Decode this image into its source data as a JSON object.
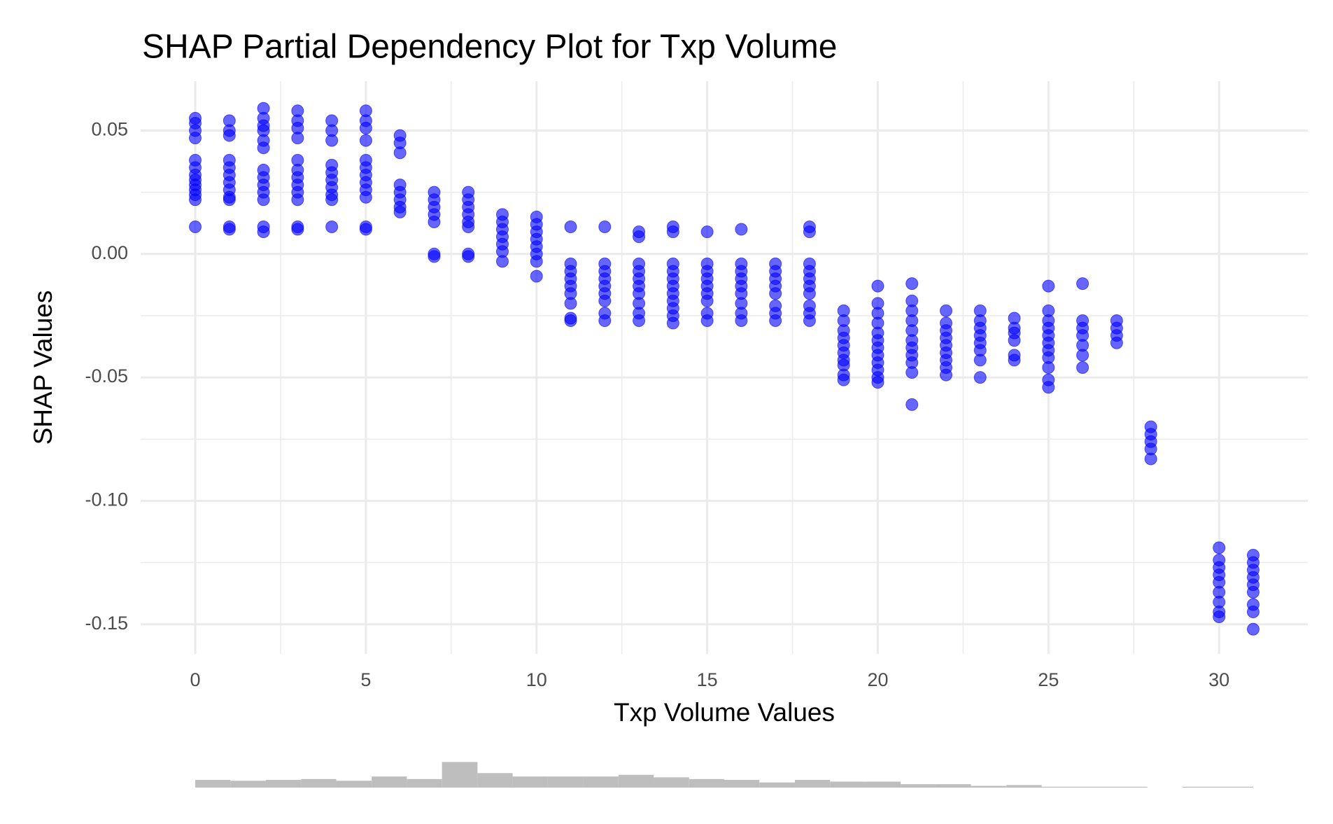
{
  "chart_data": [
    {
      "type": "scatter",
      "title": "SHAP Partial Dependency Plot for Txp Volume",
      "x_label": "Txp Volume Values",
      "y_label": "SHAP Values",
      "color": "#0000ff",
      "grid": true,
      "xlim": [
        -1.6,
        32.6
      ],
      "xticks": [
        0,
        5,
        10,
        15,
        20,
        25,
        30
      ],
      "ylim": [
        -0.162,
        0.07
      ],
      "yticks": [
        {
          "value": -0.15,
          "label": "-0.15"
        },
        {
          "value": -0.1,
          "label": "-0.10"
        },
        -0.05,
        {
          "value": 0,
          "label": "0.00"
        },
        0.05
      ],
      "x": [
        0,
        0,
        0,
        0,
        0,
        0,
        0,
        0,
        0,
        0,
        0,
        0,
        0,
        1,
        1,
        1,
        1,
        1,
        1,
        1,
        1,
        1,
        1,
        1,
        1,
        2,
        2,
        2,
        2,
        2,
        2,
        2,
        2,
        2,
        2,
        2,
        2,
        2,
        3,
        3,
        3,
        3,
        3,
        3,
        3,
        3,
        3,
        3,
        3,
        3,
        4,
        4,
        4,
        4,
        4,
        4,
        4,
        4,
        4,
        4,
        5,
        5,
        5,
        5,
        5,
        5,
        5,
        5,
        5,
        5,
        5,
        5,
        6,
        6,
        6,
        6,
        6,
        6,
        6,
        6,
        7,
        7,
        7,
        7,
        7,
        7,
        7,
        8,
        8,
        8,
        8,
        8,
        8,
        8,
        8,
        9,
        9,
        9,
        9,
        9,
        9,
        9,
        10,
        10,
        10,
        10,
        10,
        10,
        10,
        10,
        11,
        11,
        11,
        11,
        11,
        11,
        11,
        11,
        11,
        12,
        12,
        12,
        12,
        12,
        12,
        12,
        12,
        12,
        13,
        13,
        13,
        13,
        13,
        13,
        13,
        13,
        13,
        13,
        14,
        14,
        14,
        14,
        14,
        14,
        14,
        14,
        14,
        14,
        14,
        15,
        15,
        15,
        15,
        15,
        15,
        15,
        15,
        15,
        16,
        16,
        16,
        16,
        16,
        16,
        16,
        16,
        16,
        17,
        17,
        17,
        17,
        17,
        17,
        17,
        17,
        18,
        18,
        18,
        18,
        18,
        18,
        18,
        18,
        18,
        18,
        19,
        19,
        19,
        19,
        19,
        19,
        19,
        19,
        19,
        19,
        20,
        20,
        20,
        20,
        20,
        20,
        20,
        20,
        20,
        20,
        20,
        20,
        21,
        21,
        21,
        21,
        21,
        21,
        21,
        21,
        21,
        21,
        21,
        22,
        22,
        22,
        22,
        22,
        22,
        22,
        22,
        22,
        23,
        23,
        23,
        23,
        23,
        23,
        23,
        23,
        24,
        24,
        24,
        24,
        24,
        24,
        25,
        25,
        25,
        25,
        25,
        25,
        25,
        25,
        25,
        25,
        25,
        26,
        26,
        26,
        26,
        26,
        26,
        26,
        27,
        27,
        27,
        27,
        28,
        28,
        28,
        28,
        28,
        30,
        30,
        30,
        30,
        30,
        30,
        30,
        30,
        30,
        31,
        31,
        31,
        31,
        31,
        31,
        31,
        31,
        31
      ],
      "y": [
        0.055,
        0.053,
        0.05,
        0.047,
        0.038,
        0.035,
        0.032,
        0.03,
        0.028,
        0.026,
        0.024,
        0.022,
        0.011,
        0.054,
        0.05,
        0.048,
        0.038,
        0.035,
        0.032,
        0.029,
        0.026,
        0.023,
        0.022,
        0.011,
        0.01,
        0.059,
        0.055,
        0.052,
        0.05,
        0.046,
        0.043,
        0.034,
        0.031,
        0.028,
        0.025,
        0.022,
        0.011,
        0.009,
        0.058,
        0.054,
        0.051,
        0.047,
        0.038,
        0.034,
        0.031,
        0.028,
        0.025,
        0.022,
        0.011,
        0.01,
        0.054,
        0.05,
        0.046,
        0.036,
        0.033,
        0.03,
        0.027,
        0.024,
        0.022,
        0.011,
        0.058,
        0.054,
        0.051,
        0.046,
        0.038,
        0.035,
        0.032,
        0.029,
        0.026,
        0.023,
        0.011,
        0.01,
        0.048,
        0.045,
        0.041,
        0.028,
        0.025,
        0.022,
        0.019,
        0.017,
        0.025,
        0.022,
        0.019,
        0.016,
        0.013,
        0.0,
        -0.001,
        0.025,
        0.022,
        0.019,
        0.016,
        0.013,
        0.011,
        0.0,
        -0.001,
        0.016,
        0.013,
        0.01,
        0.007,
        0.004,
        0.001,
        -0.003,
        0.015,
        0.012,
        0.009,
        0.006,
        0.003,
        0.0,
        -0.003,
        -0.009,
        0.011,
        -0.004,
        -0.007,
        -0.01,
        -0.013,
        -0.016,
        -0.02,
        -0.026,
        -0.027,
        0.011,
        -0.004,
        -0.007,
        -0.01,
        -0.013,
        -0.016,
        -0.019,
        -0.024,
        -0.027,
        0.009,
        0.007,
        -0.004,
        -0.007,
        -0.01,
        -0.013,
        -0.016,
        -0.02,
        -0.024,
        -0.027,
        0.011,
        0.009,
        -0.004,
        -0.007,
        -0.01,
        -0.013,
        -0.016,
        -0.019,
        -0.022,
        -0.025,
        -0.028,
        0.009,
        -0.004,
        -0.007,
        -0.01,
        -0.013,
        -0.016,
        -0.019,
        -0.024,
        -0.027,
        0.01,
        -0.004,
        -0.007,
        -0.01,
        -0.013,
        -0.016,
        -0.02,
        -0.024,
        -0.027,
        -0.004,
        -0.007,
        -0.01,
        -0.013,
        -0.016,
        -0.021,
        -0.024,
        -0.027,
        0.011,
        0.009,
        -0.004,
        -0.007,
        -0.01,
        -0.013,
        -0.016,
        -0.021,
        -0.024,
        -0.027,
        -0.023,
        -0.027,
        -0.031,
        -0.034,
        -0.037,
        -0.04,
        -0.043,
        -0.045,
        -0.049,
        -0.051,
        -0.013,
        -0.02,
        -0.024,
        -0.028,
        -0.032,
        -0.035,
        -0.038,
        -0.041,
        -0.044,
        -0.047,
        -0.05,
        -0.052,
        -0.012,
        -0.019,
        -0.023,
        -0.027,
        -0.031,
        -0.035,
        -0.038,
        -0.041,
        -0.044,
        -0.048,
        -0.061,
        -0.023,
        -0.028,
        -0.031,
        -0.034,
        -0.037,
        -0.04,
        -0.043,
        -0.046,
        -0.049,
        -0.023,
        -0.027,
        -0.03,
        -0.033,
        -0.036,
        -0.039,
        -0.043,
        -0.05,
        -0.026,
        -0.03,
        -0.032,
        -0.035,
        -0.041,
        -0.043,
        -0.013,
        -0.023,
        -0.027,
        -0.03,
        -0.033,
        -0.036,
        -0.039,
        -0.042,
        -0.046,
        -0.051,
        -0.054,
        -0.012,
        -0.027,
        -0.03,
        -0.033,
        -0.037,
        -0.041,
        -0.046,
        -0.027,
        -0.03,
        -0.033,
        -0.036,
        -0.07,
        -0.073,
        -0.076,
        -0.079,
        -0.083,
        -0.119,
        -0.124,
        -0.127,
        -0.13,
        -0.133,
        -0.137,
        -0.141,
        -0.145,
        -0.147,
        -0.122,
        -0.125,
        -0.128,
        -0.131,
        -0.134,
        -0.137,
        -0.142,
        -0.145,
        -0.152
      ]
    },
    {
      "type": "histogram",
      "color": "#bebebe",
      "bins": [
        0,
        1.03,
        2.07,
        3.1,
        4.13,
        5.17,
        6.2,
        7.23,
        8.27,
        9.3,
        10.33,
        11.37,
        12.4,
        13.43,
        14.47,
        15.5,
        16.53,
        17.57,
        18.6,
        19.63,
        20.67,
        21.7,
        22.73,
        23.77,
        24.8,
        25.83,
        26.87,
        27.9,
        28.93,
        29.97,
        31
      ],
      "counts": [
        9,
        8,
        9,
        10,
        8,
        13,
        10,
        30,
        17,
        13,
        13,
        13,
        15,
        12,
        10,
        9,
        6,
        9,
        7,
        7,
        4,
        4,
        2,
        3,
        1,
        1,
        1,
        0,
        1,
        1
      ]
    }
  ]
}
